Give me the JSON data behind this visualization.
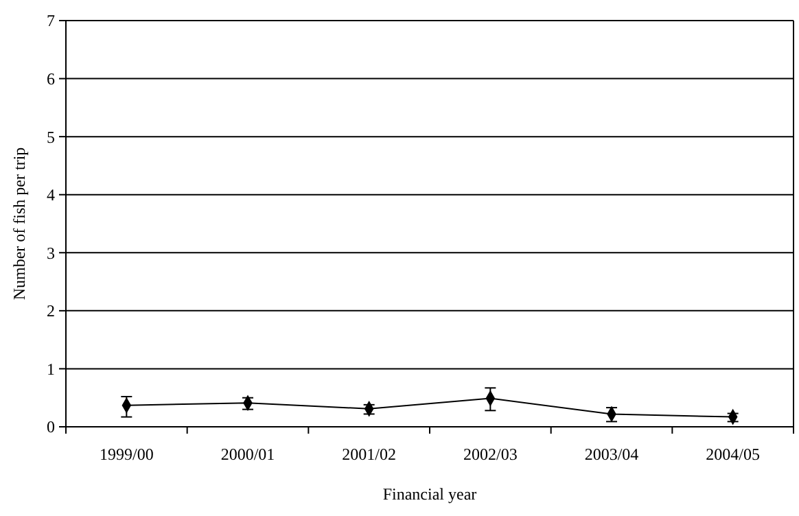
{
  "chart_data": {
    "type": "line",
    "xlabel": "Financial year",
    "ylabel": "Number of fish per trip",
    "categories": [
      "1999/00",
      "2000/01",
      "2001/02",
      "2002/03",
      "2003/04",
      "2004/05"
    ],
    "values": [
      0.37,
      0.41,
      0.31,
      0.49,
      0.22,
      0.17
    ],
    "errors": [
      [
        0.17,
        0.52
      ],
      [
        0.3,
        0.5
      ],
      [
        0.22,
        0.38
      ],
      [
        0.28,
        0.67
      ],
      [
        0.09,
        0.33
      ],
      [
        0.09,
        0.23
      ]
    ],
    "color": "#000000",
    "marker": "diamond",
    "line_style": "solid",
    "ylim": [
      0,
      7
    ],
    "yticks": [
      0,
      1,
      2,
      3,
      4,
      5,
      6,
      7
    ],
    "grid": "y"
  }
}
